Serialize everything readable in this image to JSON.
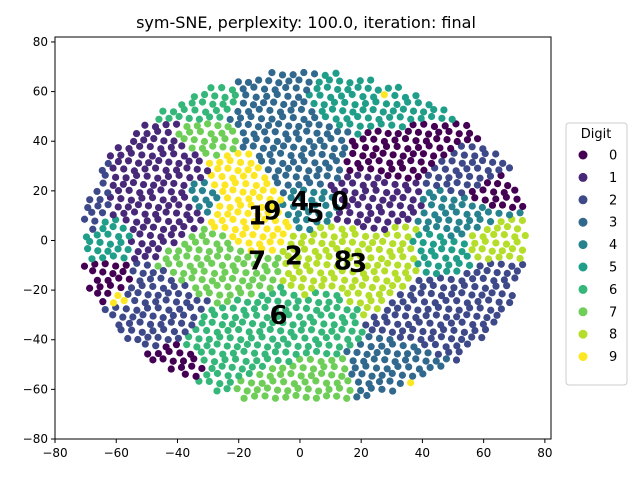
{
  "chart_data": {
    "type": "scatter",
    "title": "sym-SNE, perplexity: 100.0, iteration: final",
    "xlabel": "",
    "ylabel": "",
    "xlim": [
      -80,
      82
    ],
    "ylim": [
      -80,
      82
    ],
    "xticks": [
      -80,
      -60,
      -40,
      -20,
      0,
      20,
      40,
      60,
      80
    ],
    "yticks": [
      -80,
      -60,
      -40,
      -20,
      0,
      20,
      40,
      60,
      80
    ],
    "grid": false,
    "legend": {
      "title": "Digit",
      "placement": "center-right outside",
      "entries": [
        {
          "label": "0",
          "color": "#440154"
        },
        {
          "label": "1",
          "color": "#482878"
        },
        {
          "label": "2",
          "color": "#3e4989"
        },
        {
          "label": "3",
          "color": "#31688e"
        },
        {
          "label": "4",
          "color": "#26828e"
        },
        {
          "label": "5",
          "color": "#1f9e89"
        },
        {
          "label": "6",
          "color": "#35b779"
        },
        {
          "label": "7",
          "color": "#6ece58"
        },
        {
          "label": "8",
          "color": "#b5de2b"
        },
        {
          "label": "9",
          "color": "#fde725"
        }
      ]
    },
    "cloud": {
      "center": [
        1.5,
        1
      ],
      "radius_x": 73,
      "radius_y": 67,
      "grid_spacing": 3.4
    },
    "regions": [
      {
        "digit": "0",
        "center": [
          33,
          35
        ],
        "spread": [
          16,
          9
        ]
      },
      {
        "digit": "0",
        "center": [
          -62,
          -18
        ],
        "spread": [
          6,
          6
        ]
      },
      {
        "digit": "0",
        "center": [
          -42,
          -50
        ],
        "spread": [
          8,
          7
        ]
      },
      {
        "digit": "0",
        "center": [
          62,
          20
        ],
        "spread": [
          6,
          5
        ]
      },
      {
        "digit": "1",
        "center": [
          -47,
          20
        ],
        "spread": [
          13,
          18
        ]
      },
      {
        "digit": "1",
        "center": [
          21,
          15
        ],
        "spread": [
          14,
          11
        ]
      },
      {
        "digit": "2",
        "center": [
          -68,
          20
        ],
        "spread": [
          6,
          14
        ]
      },
      {
        "digit": "2",
        "center": [
          -45,
          -28
        ],
        "spread": [
          12,
          12
        ]
      },
      {
        "digit": "2",
        "center": [
          46,
          -28
        ],
        "spread": [
          18,
          12
        ]
      },
      {
        "digit": "2",
        "center": [
          52,
          28
        ],
        "spread": [
          10,
          8
        ]
      },
      {
        "digit": "3",
        "center": [
          -3,
          38
        ],
        "spread": [
          16,
          20
        ]
      },
      {
        "digit": "3",
        "center": [
          28,
          -52
        ],
        "spread": [
          12,
          10
        ]
      },
      {
        "digit": "4",
        "center": [
          5,
          15
        ],
        "spread": [
          12,
          8
        ]
      },
      {
        "digit": "4",
        "center": [
          50,
          10
        ],
        "spread": [
          9,
          9
        ]
      },
      {
        "digit": "4",
        "center": [
          -32,
          18
        ],
        "spread": [
          6,
          6
        ]
      },
      {
        "digit": "5",
        "center": [
          20,
          55
        ],
        "spread": [
          18,
          9
        ]
      },
      {
        "digit": "5",
        "center": [
          -62,
          2
        ],
        "spread": [
          6,
          6
        ]
      },
      {
        "digit": "5",
        "center": [
          45,
          -5
        ],
        "spread": [
          8,
          8
        ]
      },
      {
        "digit": "6",
        "center": [
          -12,
          -40
        ],
        "spread": [
          22,
          14
        ]
      },
      {
        "digit": "6",
        "center": [
          10,
          -28
        ],
        "spread": [
          8,
          8
        ]
      },
      {
        "digit": "6",
        "center": [
          -34,
          55
        ],
        "spread": [
          10,
          6
        ]
      },
      {
        "digit": "7",
        "center": [
          -26,
          -10
        ],
        "spread": [
          14,
          12
        ]
      },
      {
        "digit": "7",
        "center": [
          0,
          -56
        ],
        "spread": [
          16,
          10
        ]
      },
      {
        "digit": "7",
        "center": [
          -28,
          42
        ],
        "spread": [
          8,
          6
        ]
      },
      {
        "digit": "8",
        "center": [
          20,
          -10
        ],
        "spread": [
          18,
          16
        ]
      },
      {
        "digit": "8",
        "center": [
          62,
          0
        ],
        "spread": [
          6,
          5
        ]
      },
      {
        "digit": "9",
        "center": [
          -17,
          15
        ],
        "spread": [
          10,
          22
        ]
      },
      {
        "digit": "9",
        "center": [
          28,
          58
        ],
        "spread": [
          3,
          3
        ]
      },
      {
        "digit": "9",
        "center": [
          35,
          -58
        ],
        "spread": [
          4,
          3
        ]
      },
      {
        "digit": "9",
        "center": [
          -60,
          -22
        ],
        "spread": [
          3,
          3
        ]
      }
    ],
    "centroid_labels": [
      {
        "text": "0",
        "x": 13,
        "y": 16
      },
      {
        "text": "1",
        "x": -14,
        "y": 10
      },
      {
        "text": "2",
        "x": -2,
        "y": -6
      },
      {
        "text": "3",
        "x": 19,
        "y": -9
      },
      {
        "text": "4",
        "x": 0,
        "y": 16
      },
      {
        "text": "5",
        "x": 5,
        "y": 11
      },
      {
        "text": "6",
        "x": -7,
        "y": -30
      },
      {
        "text": "7",
        "x": -14,
        "y": -8
      },
      {
        "text": "8",
        "x": 14,
        "y": -8
      },
      {
        "text": "9",
        "x": -9,
        "y": 12
      }
    ]
  }
}
